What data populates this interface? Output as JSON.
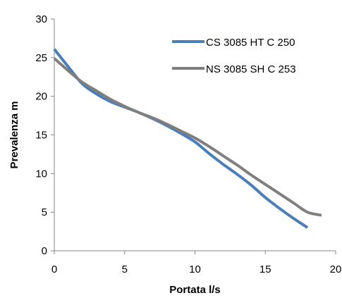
{
  "chart_data": {
    "type": "line",
    "title": "",
    "xlabel": "Portata l/s",
    "ylabel": "Prevalenza  m",
    "xlim": [
      0,
      20
    ],
    "ylim": [
      0,
      30
    ],
    "x_ticks": [
      0,
      5,
      10,
      15,
      20
    ],
    "y_ticks": [
      0,
      5,
      10,
      15,
      20,
      25,
      30
    ],
    "x_tick_labels": [
      "0",
      "5",
      "10",
      "15",
      "20"
    ],
    "y_tick_labels": [
      "0",
      "5",
      "10",
      "15",
      "20",
      "25",
      "30"
    ],
    "grid": false,
    "legend_position": "top-right",
    "series": [
      {
        "name": "CS 3085 HT  C 250",
        "color": "#4a7ebb",
        "x": [
          0,
          1,
          2,
          3,
          4,
          5,
          6,
          7,
          8,
          9,
          10,
          11,
          12,
          13,
          14,
          15,
          16,
          17,
          18
        ],
        "y": [
          26.1,
          23.8,
          21.6,
          20.3,
          19.3,
          18.6,
          17.9,
          17.1,
          16.2,
          15.2,
          14.1,
          12.6,
          11.2,
          9.9,
          8.5,
          6.9,
          5.5,
          4.2,
          3.0
        ]
      },
      {
        "name": "NS 3085 SH C 253",
        "color": "#7f7f7f",
        "x": [
          0,
          1,
          2,
          3,
          4,
          5,
          6,
          7,
          8,
          9,
          10,
          11,
          12,
          13,
          14,
          15,
          16,
          17,
          18,
          19
        ],
        "y": [
          24.9,
          23.3,
          21.8,
          20.7,
          19.6,
          18.7,
          17.9,
          17.2,
          16.4,
          15.5,
          14.6,
          13.5,
          12.3,
          11.1,
          9.8,
          8.6,
          7.4,
          6.2,
          5.0,
          4.6
        ]
      }
    ]
  }
}
